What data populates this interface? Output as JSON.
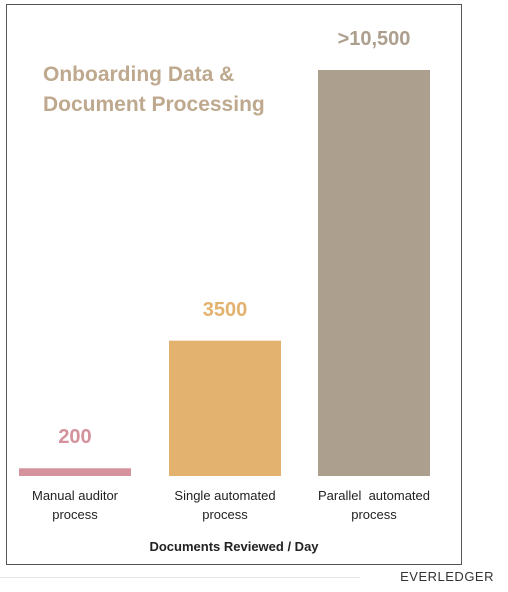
{
  "chart_data": {
    "type": "bar",
    "title": "Onboarding Data & Document Processing",
    "x_label": "Documents Reviewed / Day",
    "categories": [
      "Manual auditor process",
      "Single automated process",
      "Parallel  automated process"
    ],
    "values": [
      200,
      3500,
      10500
    ],
    "value_labels": [
      "200",
      "3500",
      ">10,500"
    ],
    "colors": [
      "#d4929c",
      "#e2b26e",
      "#ad9f8e"
    ]
  },
  "logo": "EVERLEDGER"
}
